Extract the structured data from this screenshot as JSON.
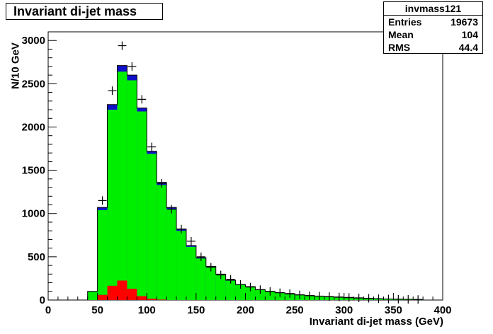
{
  "chart_data": {
    "type": "histogram",
    "title": "Invariant di-jet mass",
    "xlabel": "Invariant di-jet mass (GeV)",
    "ylabel": "N/10 GeV",
    "xlim": [
      0,
      400
    ],
    "ylim": [
      0,
      3100
    ],
    "bin_width": 10,
    "x_ticks": [
      0,
      50,
      100,
      150,
      200,
      250,
      300,
      350,
      400
    ],
    "y_ticks": [
      0,
      500,
      1000,
      1500,
      2000,
      2500,
      3000
    ],
    "bin_edges": [
      40,
      50,
      60,
      70,
      80,
      90,
      100,
      110,
      120,
      130,
      140,
      150,
      160,
      170,
      180,
      190,
      200,
      210,
      220,
      230,
      240,
      250,
      260,
      270,
      280,
      290,
      300,
      310,
      320,
      330,
      340,
      350,
      360,
      370,
      380
    ],
    "series": [
      {
        "name": "total (blue)",
        "color": "#1010c8",
        "values": [
          100,
          1070,
          2260,
          2710,
          2600,
          2220,
          1720,
          1360,
          1070,
          820,
          630,
          490,
          390,
          300,
          230,
          180,
          155,
          120,
          100,
          85,
          70,
          60,
          52,
          45,
          38,
          32,
          27,
          22,
          18,
          15,
          12,
          10,
          8,
          6
        ]
      },
      {
        "name": "green",
        "color": "#00ee00",
        "values": [
          95,
          1040,
          2200,
          2640,
          2540,
          2180,
          1690,
          1330,
          1050,
          800,
          615,
          480,
          380,
          292,
          224,
          175,
          150,
          116,
          96,
          82,
          67,
          57,
          50,
          43,
          36,
          30,
          25,
          20,
          16,
          13,
          10,
          8,
          6,
          4
        ]
      },
      {
        "name": "red",
        "color": "#ff0000",
        "values": [
          0,
          60,
          165,
          225,
          130,
          45,
          15,
          5,
          0,
          0,
          0,
          0,
          0,
          0,
          0,
          0,
          0,
          0,
          0,
          0,
          0,
          0,
          0,
          0,
          0,
          0,
          0,
          0,
          0,
          0,
          0,
          0,
          0,
          0
        ]
      }
    ],
    "data_points": [
      {
        "x": 55,
        "y": 1150
      },
      {
        "x": 65,
        "y": 2420
      },
      {
        "x": 75,
        "y": 2940
      },
      {
        "x": 85,
        "y": 2700
      },
      {
        "x": 95,
        "y": 2320
      },
      {
        "x": 105,
        "y": 1770
      },
      {
        "x": 115,
        "y": 1350
      },
      {
        "x": 125,
        "y": 1050
      },
      {
        "x": 135,
        "y": 820
      },
      {
        "x": 145,
        "y": 680
      },
      {
        "x": 155,
        "y": 500
      },
      {
        "x": 165,
        "y": 380
      },
      {
        "x": 175,
        "y": 290
      },
      {
        "x": 185,
        "y": 240
      },
      {
        "x": 195,
        "y": 180
      },
      {
        "x": 205,
        "y": 150
      },
      {
        "x": 215,
        "y": 120
      },
      {
        "x": 225,
        "y": 100
      },
      {
        "x": 235,
        "y": 85
      },
      {
        "x": 245,
        "y": 75
      },
      {
        "x": 255,
        "y": 60
      },
      {
        "x": 265,
        "y": 50
      },
      {
        "x": 275,
        "y": 45
      },
      {
        "x": 285,
        "y": 40
      },
      {
        "x": 295,
        "y": 35
      },
      {
        "x": 305,
        "y": 30
      },
      {
        "x": 315,
        "y": 25
      },
      {
        "x": 325,
        "y": 20
      },
      {
        "x": 335,
        "y": 15
      },
      {
        "x": 345,
        "y": 12
      },
      {
        "x": 355,
        "y": 10
      },
      {
        "x": 365,
        "y": 8
      },
      {
        "x": 375,
        "y": 6
      }
    ]
  },
  "stats": {
    "name": "invmass121",
    "entries_label": "Entries",
    "entries_value": "19673",
    "mean_label": "Mean",
    "mean_value": "104",
    "rms_label": "RMS",
    "rms_value": "44.4"
  }
}
